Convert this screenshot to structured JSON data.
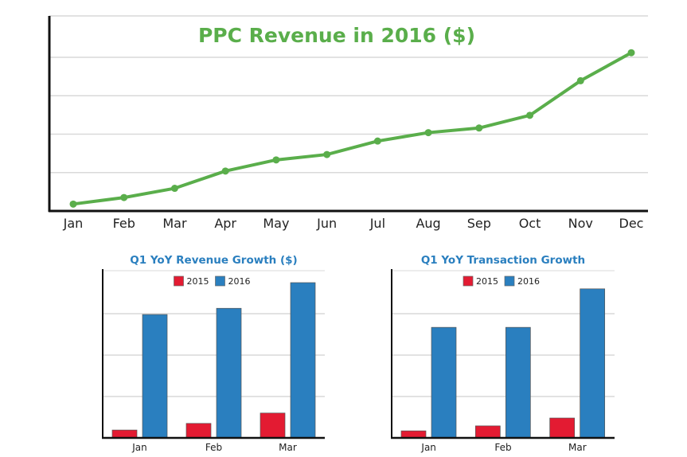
{
  "colors": {
    "line": "#5aae4b",
    "s2015": "#e31b32",
    "s2016": "#2a7fbf",
    "grid": "#d9d9d9",
    "axis": "#111111",
    "subtitle": "#2a7fbf"
  },
  "chart_data": [
    {
      "type": "line",
      "title": "PPC Revenue in 2016 ($)",
      "xlabel": "",
      "ylabel": "",
      "categories": [
        "Jan",
        "Feb",
        "Mar",
        "Apr",
        "May",
        "Jun",
        "Jul",
        "Aug",
        "Sep",
        "Oct",
        "Nov",
        "Dec"
      ],
      "values": [
        0.18,
        0.35,
        0.59,
        1.04,
        1.33,
        1.47,
        1.82,
        2.04,
        2.16,
        2.49,
        3.39,
        4.12
      ],
      "ylim": [
        0,
        5
      ],
      "grid": true
    },
    {
      "type": "bar",
      "title": "Q1 YoY Revenue Growth ($)",
      "categories": [
        "Jan",
        "Feb",
        "Mar"
      ],
      "series": [
        {
          "name": "2015",
          "values": [
            0.19,
            0.35,
            0.6
          ]
        },
        {
          "name": "2016",
          "values": [
            2.98,
            3.13,
            3.75
          ]
        }
      ],
      "ylim": [
        0,
        4
      ],
      "legend": "top-center",
      "grid": true
    },
    {
      "type": "bar",
      "title": "Q1 YoY Transaction Growth",
      "categories": [
        "Jan",
        "Feb",
        "Mar"
      ],
      "series": [
        {
          "name": "2015",
          "values": [
            0.17,
            0.29,
            0.48
          ]
        },
        {
          "name": "2016",
          "values": [
            2.67,
            2.67,
            3.6
          ]
        }
      ],
      "ylim": [
        0,
        4
      ],
      "legend": "top-center",
      "grid": true
    }
  ]
}
